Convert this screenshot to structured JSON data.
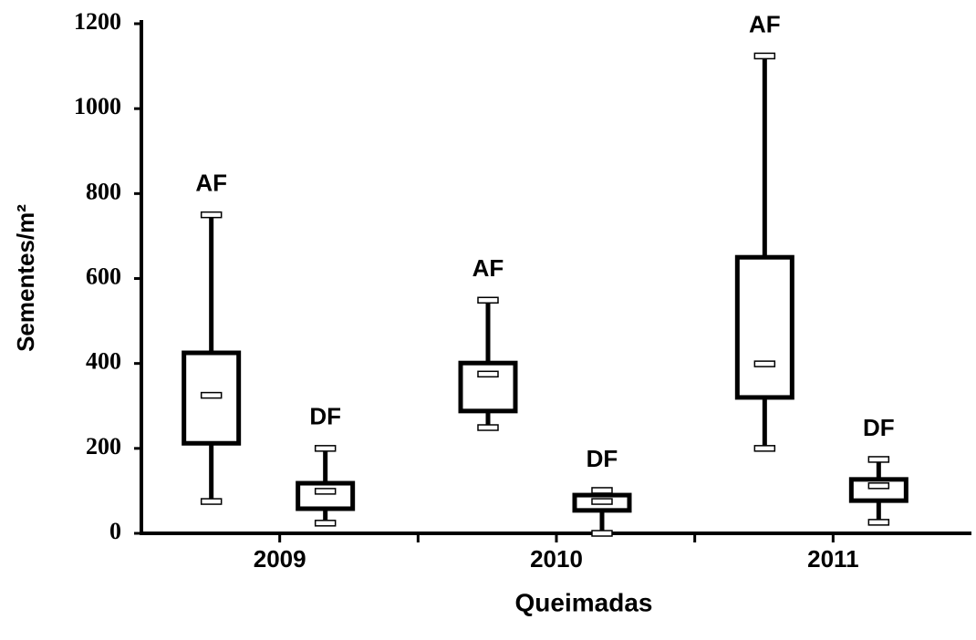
{
  "chart_data": {
    "type": "box",
    "y_label": "Sementes/m²",
    "x_label": "Queimadas",
    "categories": [
      "2009",
      "2010",
      "2011"
    ],
    "ylim": [
      0,
      1200
    ],
    "yticks": [
      0,
      200,
      400,
      600,
      800,
      1000,
      1200
    ],
    "series": [
      {
        "name": "AF",
        "color": "#000000",
        "min": [
          75,
          249,
          200
        ],
        "q1": [
          212,
          288,
          320
        ],
        "median": [
          325,
          375,
          399
        ],
        "q3": [
          425,
          401,
          650
        ],
        "max": [
          750,
          549,
          1124
        ]
      },
      {
        "name": "DF",
        "color": "#000000",
        "min": [
          24,
          0,
          26
        ],
        "q1": [
          58,
          54,
          77
        ],
        "median": [
          99,
          75,
          112
        ],
        "q3": [
          118,
          90,
          127
        ],
        "max": [
          200,
          101,
          174
        ]
      }
    ]
  }
}
